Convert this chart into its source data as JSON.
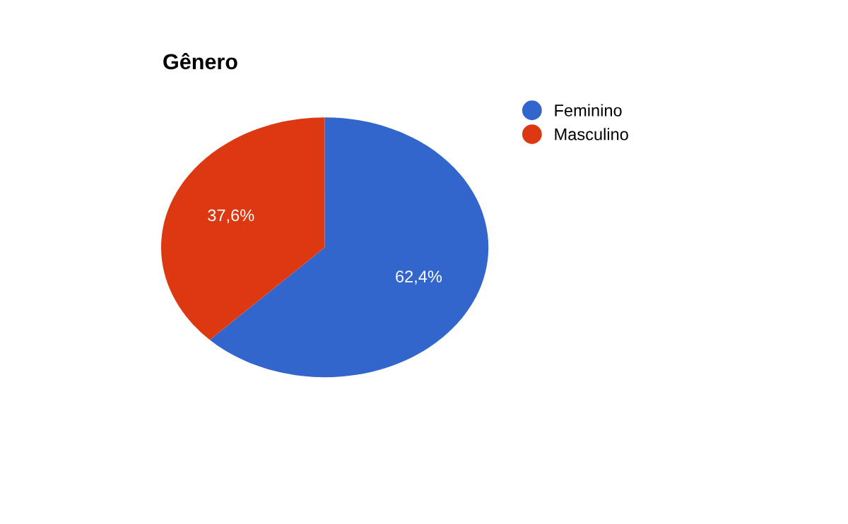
{
  "chart_data": {
    "type": "pie",
    "title": "Gênero",
    "categories": [
      "Feminino",
      "Masculino"
    ],
    "values": [
      62.4,
      37.6
    ],
    "value_labels": [
      "62,4%",
      "37,6%"
    ],
    "colors": [
      "#3366cc",
      "#dc3912"
    ],
    "legend": "top right"
  }
}
